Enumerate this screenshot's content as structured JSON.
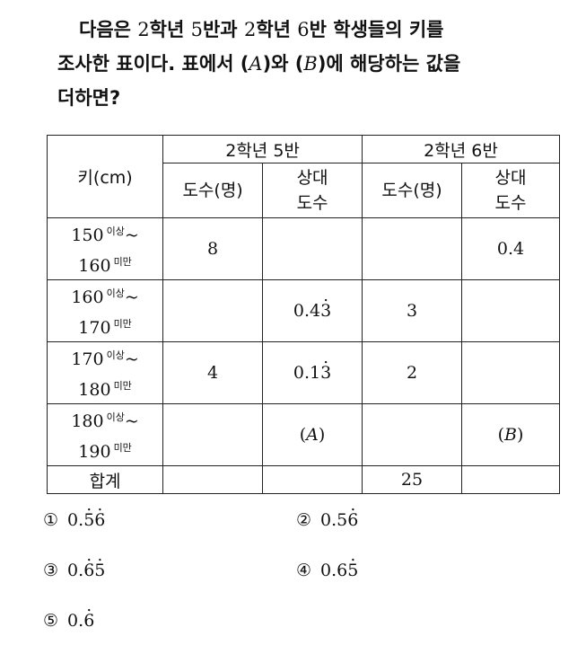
{
  "question": {
    "line1_a": "다음은",
    "line1_n1": "2",
    "line1_b": "학년",
    "line1_n2": "5",
    "line1_c": "반과",
    "line1_n3": "2",
    "line1_d": "학년",
    "line1_n4": "6",
    "line1_e": "반 학생들의 키를",
    "line2_a": "조사한 표이다. 표에서 (",
    "var_a": "A",
    "line2_b": ")와 (",
    "var_b": "B",
    "line2_c": ")에 해당하는 값을",
    "line3": "더하면?"
  },
  "table": {
    "class_header": "키(cm)",
    "group1": "2학년 5반",
    "group2": "2학년 6반",
    "freq_label": "도수(명)",
    "rel_label_1": "상대",
    "rel_label_2": "도수",
    "sup_above": "이상",
    "sup_below": "미만",
    "tilde": "~",
    "rows": [
      {
        "low": "150",
        "high": "160",
        "f5": "8",
        "r5_pre": "",
        "r5_dot": "",
        "f6": "",
        "r6": "0.4"
      },
      {
        "low": "160",
        "high": "170",
        "f5": "",
        "r5_pre": "0.4",
        "r5_dot": "3",
        "f6": "3",
        "r6": ""
      },
      {
        "low": "170",
        "high": "180",
        "f5": "4",
        "r5_pre": "0.1",
        "r5_dot": "3",
        "f6": "2",
        "r6": ""
      },
      {
        "low": "180",
        "high": "190",
        "f5": "",
        "r5_var": "A",
        "f6": "",
        "r6_var": "B"
      }
    ],
    "total_label": "합계",
    "total_f6": "25"
  },
  "choices": [
    {
      "mark": "①",
      "pre": "0.",
      "dot1": "5",
      "mid": "",
      "dot2": "6"
    },
    {
      "mark": "②",
      "pre": "0.5",
      "dot1": "",
      "mid": "",
      "dot2": "6"
    },
    {
      "mark": "③",
      "pre": "0.",
      "dot1": "6",
      "mid": "",
      "dot2": "5"
    },
    {
      "mark": "④",
      "pre": "0.6",
      "dot1": "",
      "mid": "",
      "dot2": "5"
    },
    {
      "mark": "⑤",
      "pre": "0.",
      "dot1": "",
      "mid": "",
      "dot2": "6"
    }
  ]
}
